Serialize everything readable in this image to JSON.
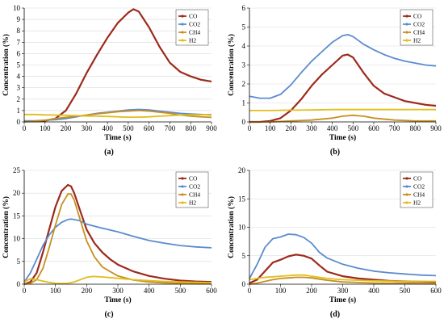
{
  "colors": {
    "CO": "#9c2a1c",
    "CO2": "#5b8bd0",
    "CH4": "#c7901d",
    "H2": "#e2bd1a"
  },
  "chart_data": [
    {
      "type": "line",
      "panel_label": "(a)",
      "xlabel": "Time (s)",
      "ylabel": "Concentration (%)",
      "xlim": [
        0,
        900
      ],
      "ylim": [
        0,
        10
      ],
      "xticks": [
        0,
        100,
        200,
        300,
        400,
        500,
        600,
        700,
        800,
        900
      ],
      "yticks": [
        0,
        1,
        2,
        3,
        4,
        5,
        6,
        7,
        8,
        9,
        10
      ],
      "grid": true,
      "legend": "top-right",
      "series": [
        {
          "name": "CO",
          "x": [
            0,
            50,
            100,
            150,
            200,
            250,
            300,
            350,
            400,
            450,
            500,
            525,
            550,
            600,
            650,
            700,
            750,
            800,
            850,
            900
          ],
          "y": [
            0.05,
            0.05,
            0.1,
            0.3,
            1.0,
            2.5,
            4.3,
            5.9,
            7.4,
            8.7,
            9.6,
            9.9,
            9.7,
            8.3,
            6.6,
            5.2,
            4.4,
            4.0,
            3.7,
            3.55
          ]
        },
        {
          "name": "CO2",
          "x": [
            0,
            50,
            100,
            150,
            200,
            250,
            300,
            350,
            400,
            450,
            500,
            550,
            600,
            650,
            700,
            750,
            800,
            850,
            900
          ],
          "y": [
            0.1,
            0.1,
            0.15,
            0.2,
            0.3,
            0.45,
            0.6,
            0.75,
            0.85,
            0.95,
            1.05,
            1.1,
            1.05,
            0.95,
            0.85,
            0.75,
            0.7,
            0.65,
            0.6
          ]
        },
        {
          "name": "CH4",
          "x": [
            0,
            50,
            100,
            150,
            200,
            250,
            300,
            350,
            400,
            450,
            500,
            550,
            600,
            650,
            700,
            750,
            800,
            850,
            900
          ],
          "y": [
            0.0,
            0.05,
            0.15,
            0.3,
            0.4,
            0.5,
            0.6,
            0.7,
            0.8,
            0.9,
            0.95,
            1.0,
            0.95,
            0.85,
            0.75,
            0.6,
            0.5,
            0.45,
            0.4
          ]
        },
        {
          "name": "H2",
          "x": [
            0,
            50,
            100,
            150,
            200,
            250,
            300,
            350,
            400,
            450,
            500,
            550,
            600,
            650,
            700,
            750,
            800,
            850,
            900
          ],
          "y": [
            0.65,
            0.65,
            0.62,
            0.6,
            0.58,
            0.55,
            0.52,
            0.5,
            0.48,
            0.45,
            0.42,
            0.42,
            0.45,
            0.5,
            0.55,
            0.6,
            0.62,
            0.63,
            0.65
          ]
        }
      ]
    },
    {
      "type": "line",
      "panel_label": "(b)",
      "xlabel": "Time (s)",
      "ylabel": "Concentration (%)",
      "xlim": [
        0,
        900
      ],
      "ylim": [
        0,
        6
      ],
      "xticks": [
        0,
        100,
        200,
        300,
        400,
        500,
        600,
        700,
        800,
        900
      ],
      "yticks": [
        0,
        1,
        2,
        3,
        4,
        5,
        6
      ],
      "grid": true,
      "legend": "top-right",
      "series": [
        {
          "name": "CO",
          "x": [
            0,
            50,
            100,
            150,
            200,
            250,
            300,
            350,
            400,
            450,
            475,
            500,
            550,
            600,
            650,
            700,
            750,
            800,
            850,
            900
          ],
          "y": [
            0.0,
            0.0,
            0.05,
            0.2,
            0.6,
            1.2,
            1.9,
            2.5,
            3.0,
            3.5,
            3.55,
            3.4,
            2.6,
            1.9,
            1.5,
            1.3,
            1.1,
            1.0,
            0.9,
            0.85
          ]
        },
        {
          "name": "CO2",
          "x": [
            0,
            50,
            100,
            150,
            200,
            250,
            300,
            350,
            400,
            450,
            475,
            500,
            550,
            600,
            650,
            700,
            750,
            800,
            850,
            900
          ],
          "y": [
            1.35,
            1.25,
            1.25,
            1.45,
            1.95,
            2.6,
            3.2,
            3.7,
            4.2,
            4.55,
            4.6,
            4.5,
            4.1,
            3.8,
            3.55,
            3.35,
            3.2,
            3.1,
            3.0,
            2.95
          ]
        },
        {
          "name": "CH4",
          "x": [
            0,
            100,
            200,
            300,
            400,
            450,
            500,
            550,
            600,
            700,
            800,
            900
          ],
          "y": [
            0.0,
            0.0,
            0.05,
            0.1,
            0.2,
            0.3,
            0.35,
            0.3,
            0.2,
            0.1,
            0.05,
            0.05
          ]
        },
        {
          "name": "H2",
          "x": [
            0,
            100,
            200,
            300,
            400,
            500,
            600,
            700,
            800,
            900
          ],
          "y": [
            0.6,
            0.6,
            0.62,
            0.63,
            0.65,
            0.65,
            0.65,
            0.65,
            0.65,
            0.65
          ]
        }
      ]
    },
    {
      "type": "line",
      "panel_label": "(c)",
      "xlabel": "Time (s)",
      "ylabel": "Concentration (%)",
      "xlim": [
        0,
        600
      ],
      "ylim": [
        0,
        25
      ],
      "xticks": [
        0,
        100,
        200,
        300,
        400,
        500,
        600
      ],
      "yticks": [
        0,
        5,
        10,
        15,
        20,
        25
      ],
      "grid": true,
      "legend": "top-right",
      "series": [
        {
          "name": "CO",
          "x": [
            0,
            20,
            40,
            60,
            80,
            100,
            120,
            140,
            150,
            160,
            180,
            200,
            225,
            250,
            275,
            300,
            350,
            400,
            450,
            500,
            550,
            600
          ],
          "y": [
            0.0,
            0.5,
            2.5,
            7.0,
            12.0,
            17.0,
            20.5,
            21.8,
            21.5,
            20.0,
            16.0,
            12.0,
            9.0,
            7.0,
            5.5,
            4.3,
            2.8,
            1.8,
            1.2,
            0.8,
            0.6,
            0.5
          ]
        },
        {
          "name": "CO2",
          "x": [
            0,
            20,
            40,
            60,
            80,
            100,
            120,
            140,
            150,
            175,
            200,
            250,
            300,
            350,
            400,
            450,
            500,
            550,
            600
          ],
          "y": [
            0.5,
            2.5,
            5.5,
            8.5,
            10.8,
            12.5,
            13.6,
            14.2,
            14.3,
            14.0,
            13.2,
            12.3,
            11.5,
            10.5,
            9.6,
            9.0,
            8.5,
            8.2,
            8.0
          ]
        },
        {
          "name": "CH4",
          "x": [
            0,
            20,
            40,
            60,
            80,
            100,
            120,
            140,
            150,
            160,
            180,
            200,
            225,
            250,
            300,
            350,
            400,
            450,
            500,
            550,
            600
          ],
          "y": [
            0.0,
            0.2,
            1.0,
            3.5,
            8.0,
            13.0,
            17.5,
            19.8,
            19.8,
            18.5,
            14.0,
            9.5,
            6.0,
            3.8,
            1.8,
            0.9,
            0.5,
            0.3,
            0.2,
            0.15,
            0.1
          ]
        },
        {
          "name": "H2",
          "x": [
            0,
            20,
            40,
            60,
            80,
            100,
            120,
            140,
            160,
            180,
            200,
            220,
            250,
            300,
            350,
            400,
            450,
            500,
            550,
            600
          ],
          "y": [
            0.5,
            1.2,
            1.0,
            0.7,
            0.4,
            0.2,
            0.15,
            0.2,
            0.5,
            1.0,
            1.5,
            1.7,
            1.6,
            1.3,
            1.0,
            0.8,
            0.6,
            0.5,
            0.4,
            0.35
          ]
        }
      ]
    },
    {
      "type": "line",
      "panel_label": "(d)",
      "xlabel": "Time (s)",
      "ylabel": "Concentration (%)",
      "xlim": [
        0,
        600
      ],
      "ylim": [
        0,
        20
      ],
      "xticks": [
        0,
        100,
        200,
        300,
        400,
        500,
        600
      ],
      "yticks": [
        0,
        5,
        10,
        15,
        20
      ],
      "grid": true,
      "legend": "top-right",
      "series": [
        {
          "name": "CO",
          "x": [
            0,
            25,
            50,
            75,
            100,
            125,
            150,
            175,
            200,
            225,
            250,
            300,
            350,
            400,
            450,
            500,
            550,
            600
          ],
          "y": [
            0.2,
            0.8,
            2.3,
            3.8,
            4.3,
            4.9,
            5.2,
            5.0,
            4.5,
            3.3,
            2.2,
            1.4,
            1.0,
            0.8,
            0.6,
            0.5,
            0.45,
            0.4
          ]
        },
        {
          "name": "CO2",
          "x": [
            0,
            25,
            50,
            75,
            100,
            125,
            150,
            175,
            200,
            225,
            250,
            300,
            350,
            400,
            450,
            500,
            550,
            600
          ],
          "y": [
            1.0,
            3.5,
            6.5,
            8.0,
            8.3,
            8.8,
            8.7,
            8.2,
            7.2,
            5.6,
            4.6,
            3.5,
            2.8,
            2.3,
            2.0,
            1.8,
            1.6,
            1.5
          ]
        },
        {
          "name": "CH4",
          "x": [
            0,
            25,
            50,
            75,
            100,
            125,
            150,
            175,
            200,
            225,
            250,
            300,
            350,
            400,
            450,
            500,
            550,
            600
          ],
          "y": [
            0.0,
            0.2,
            0.5,
            0.8,
            1.0,
            1.1,
            1.2,
            1.2,
            1.1,
            0.9,
            0.7,
            0.4,
            0.3,
            0.2,
            0.2,
            0.15,
            0.1,
            0.1
          ]
        },
        {
          "name": "H2",
          "x": [
            0,
            25,
            50,
            75,
            100,
            125,
            150,
            175,
            200,
            225,
            250,
            300,
            350,
            400,
            450,
            500,
            550,
            600
          ],
          "y": [
            0.8,
            1.0,
            1.2,
            1.3,
            1.4,
            1.5,
            1.6,
            1.6,
            1.4,
            1.2,
            1.0,
            0.8,
            0.7,
            0.6,
            0.55,
            0.5,
            0.5,
            0.5
          ]
        }
      ]
    }
  ]
}
